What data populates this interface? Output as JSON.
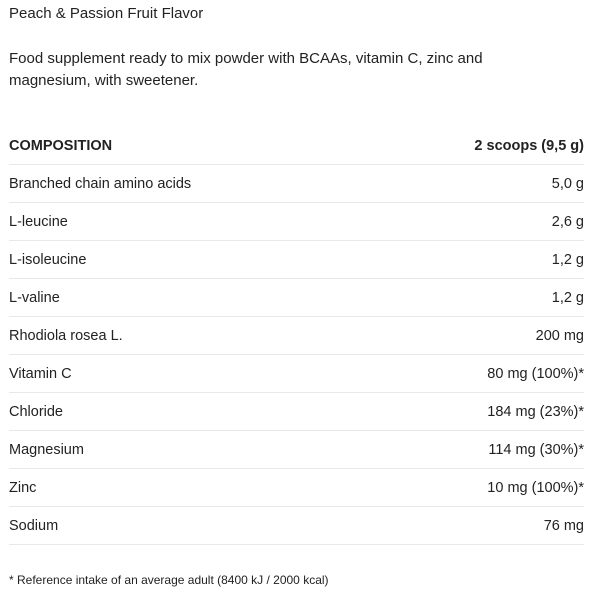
{
  "title": "Peach & Passion Fruit Flavor",
  "description": "Food supplement ready to mix powder with BCAAs, vitamin C, zinc and magnesium, with sweetener.",
  "table": {
    "header": {
      "label": "COMPOSITION",
      "value": "2 scoops (9,5 g)"
    },
    "rows": [
      {
        "label": "Branched chain amino acids",
        "value": "5,0 g"
      },
      {
        "label": "L-leucine",
        "value": "2,6 g"
      },
      {
        "label": "L-isoleucine",
        "value": "1,2 g"
      },
      {
        "label": "L-valine",
        "value": "1,2 g"
      },
      {
        "label": "Rhodiola rosea L.",
        "value": "200 mg"
      },
      {
        "label": "Vitamin C",
        "value": "80 mg (100%)*"
      },
      {
        "label": "Chloride",
        "value": "184 mg (23%)*"
      },
      {
        "label": "Magnesium",
        "value": "114 mg (30%)*"
      },
      {
        "label": "Zinc",
        "value": "10 mg (100%)*"
      },
      {
        "label": "Sodium",
        "value": "76 mg"
      }
    ]
  },
  "footnote": "* Reference intake of an average adult (8400 kJ / 2000 kcal)"
}
